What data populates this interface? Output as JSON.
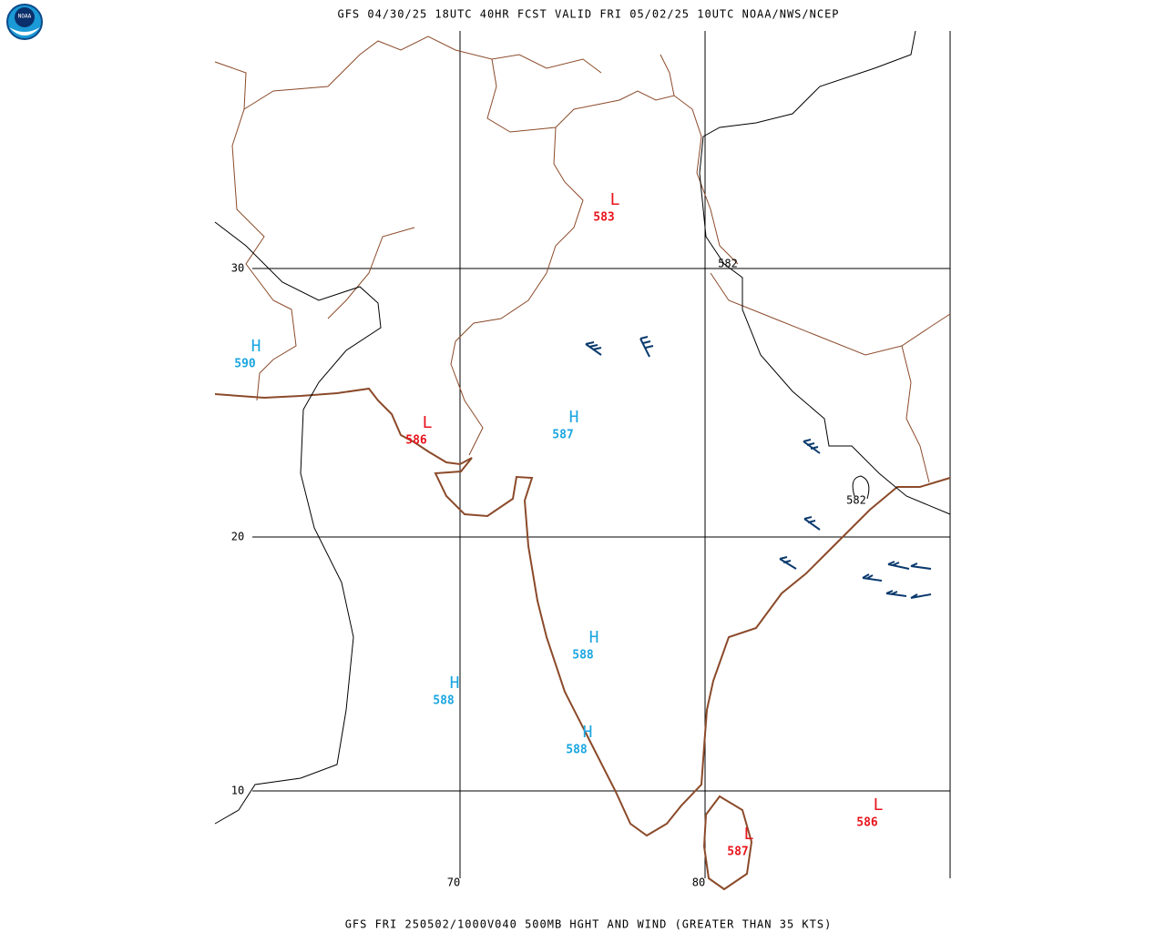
{
  "header": "GFS 04/30/25 18UTC 40HR FCST VALID FRI 05/02/25 10UTC NOAA/NWS/NCEP",
  "footer": "GFS FRI 250502/1000V040 500MB HGHT AND WIND (GREATER THAN 35 KTS)",
  "logo": "NOAA",
  "grid": {
    "lat_labels": [
      "30",
      "20",
      "10"
    ],
    "lon_labels": [
      "70",
      "80"
    ]
  },
  "centers": [
    {
      "symbol": "L",
      "value": "583"
    },
    {
      "symbol": "H",
      "value": "590"
    },
    {
      "symbol": "L",
      "value": "586"
    },
    {
      "symbol": "H",
      "value": "587"
    },
    {
      "symbol": "H",
      "value": "588"
    },
    {
      "symbol": "H",
      "value": "588"
    },
    {
      "symbol": "H",
      "value": "588"
    },
    {
      "symbol": "L",
      "value": "586"
    },
    {
      "symbol": "L",
      "value": "587"
    }
  ],
  "contour_labels": [
    "582",
    "582"
  ]
}
